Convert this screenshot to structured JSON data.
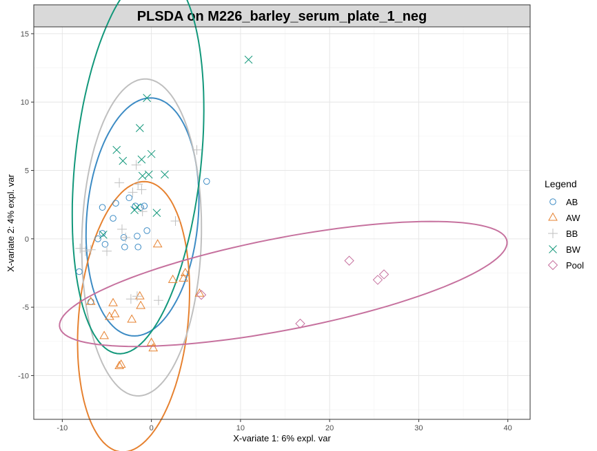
{
  "chart_data": {
    "type": "scatter",
    "title": "PLSDA on M226_barley_serum_plate_1_neg",
    "xlabel": "X-variate 1: 6% expl. var",
    "ylabel": "X-variate 2: 4% expl. var",
    "xlim": [
      -13.2,
      42.5
    ],
    "ylim": [
      -13.2,
      15.5
    ],
    "x_ticks": [
      -10,
      0,
      10,
      20,
      30,
      40
    ],
    "y_ticks": [
      -10,
      -5,
      0,
      5,
      10,
      15
    ],
    "grid": true,
    "legend_title": "Legend",
    "legend_position": "right",
    "series": [
      {
        "name": "AB",
        "color": "#3c8bc4",
        "marker": "circle",
        "points": [
          [
            -8.1,
            -2.4
          ],
          [
            -6.0,
            0.0
          ],
          [
            -5.5,
            0.4
          ],
          [
            -5.2,
            -0.4
          ],
          [
            -5.5,
            2.3
          ],
          [
            -4.3,
            1.5
          ],
          [
            -4.0,
            2.6
          ],
          [
            -3.1,
            0.1
          ],
          [
            -3.0,
            -0.6
          ],
          [
            -2.5,
            3.0
          ],
          [
            -1.8,
            2.4
          ],
          [
            -1.6,
            0.2
          ],
          [
            -1.5,
            -0.6
          ],
          [
            -1.2,
            2.3
          ],
          [
            -0.8,
            2.4
          ],
          [
            -0.5,
            0.6
          ],
          [
            6.2,
            4.2
          ],
          [
            -6.8,
            -4.6
          ]
        ]
      },
      {
        "name": "AW",
        "color": "#e6812f",
        "marker": "triangle",
        "points": [
          [
            -6.8,
            -4.6
          ],
          [
            -5.3,
            -7.1
          ],
          [
            -4.7,
            -5.7
          ],
          [
            -4.3,
            -4.7
          ],
          [
            -4.1,
            -5.5
          ],
          [
            -3.6,
            -9.3
          ],
          [
            -3.4,
            -9.2
          ],
          [
            -2.2,
            -5.9
          ],
          [
            -1.3,
            -4.2
          ],
          [
            -1.2,
            -4.9
          ],
          [
            0.0,
            -7.6
          ],
          [
            0.2,
            -8.0
          ],
          [
            0.7,
            -0.4
          ],
          [
            2.4,
            -3.0
          ],
          [
            3.6,
            -2.9
          ],
          [
            3.8,
            -2.5
          ],
          [
            5.4,
            -4.0
          ]
        ]
      },
      {
        "name": "BB",
        "color": "#bfbfbf",
        "marker": "plus",
        "points": [
          [
            -8.0,
            -0.7
          ],
          [
            -7.4,
            -0.9
          ],
          [
            -6.8,
            -0.8
          ],
          [
            -5.0,
            -0.9
          ],
          [
            -3.6,
            4.1
          ],
          [
            -3.3,
            0.7
          ],
          [
            -2.9,
            0.1
          ],
          [
            -2.3,
            -4.4
          ],
          [
            -2.1,
            3.4
          ],
          [
            -1.7,
            5.4
          ],
          [
            -1.5,
            4.0
          ],
          [
            -1.1,
            3.6
          ],
          [
            -1.0,
            2.0
          ],
          [
            0.8,
            -4.5
          ],
          [
            2.7,
            1.3
          ],
          [
            5.1,
            6.5
          ],
          [
            -1.6,
            -4.2
          ]
        ]
      },
      {
        "name": "BW",
        "color": "#11977a",
        "marker": "x",
        "points": [
          [
            -5.4,
            0.3
          ],
          [
            -3.9,
            6.5
          ],
          [
            -3.2,
            5.7
          ],
          [
            -1.6,
            2.3
          ],
          [
            -1.3,
            8.1
          ],
          [
            -1.1,
            5.8
          ],
          [
            -1.0,
            4.6
          ],
          [
            -0.5,
            10.3
          ],
          [
            -0.3,
            4.7
          ],
          [
            0.0,
            6.2
          ],
          [
            0.6,
            1.9
          ],
          [
            1.5,
            4.7
          ],
          [
            10.9,
            13.1
          ],
          [
            -1.9,
            2.1
          ]
        ]
      },
      {
        "name": "Pool",
        "color": "#c6719e",
        "marker": "diamond",
        "points": [
          [
            16.7,
            -6.2
          ],
          [
            22.2,
            -1.6
          ],
          [
            25.4,
            -3.0
          ],
          [
            26.1,
            -2.6
          ],
          [
            5.6,
            -4.1
          ]
        ]
      }
    ],
    "ellipses": [
      {
        "series": "AB",
        "cx": -1.0,
        "cy": 1.6,
        "rx": 6.2,
        "ry": 8.8,
        "rot": -12
      },
      {
        "series": "AW",
        "cx": -2.0,
        "cy": -5.7,
        "rx": 6.1,
        "ry": 10.0,
        "rot": -11
      },
      {
        "series": "BB",
        "cx": -1.1,
        "cy": 0.1,
        "rx": 6.7,
        "ry": 11.6,
        "rot": -3
      },
      {
        "series": "BW",
        "cx": -1.5,
        "cy": 5.6,
        "rx": 7.0,
        "ry": 14.2,
        "rot": -11
      },
      {
        "series": "Pool",
        "cx": 14.8,
        "cy": -3.3,
        "rx": 25.3,
        "ry": 3.4,
        "rot": 7
      }
    ]
  }
}
